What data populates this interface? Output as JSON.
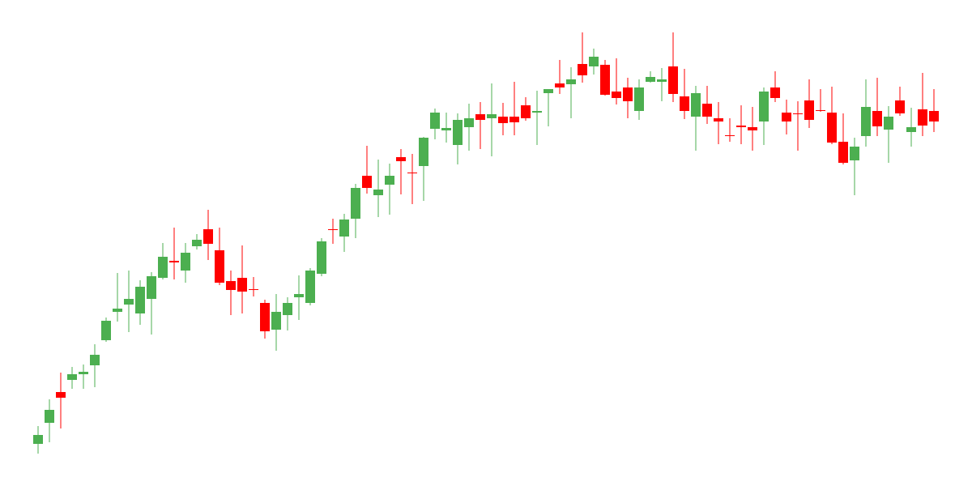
{
  "chart_data": {
    "type": "candlestick",
    "ylim": [
      0,
      600
    ],
    "up_color": "#4caf50",
    "down_color": "#ff0000",
    "open": [
      52,
      78,
      116,
      131,
      138,
      149,
      180,
      215,
      224,
      213,
      231,
      257,
      278,
      266,
      296,
      317,
      291,
      253,
      257,
      243,
      226,
      193,
      211,
      233,
      226,
      262,
      317,
      308,
      330,
      383,
      359,
      372,
      406,
      387,
      395,
      441,
      439,
      421,
      443,
      459,
      454,
      456,
      456,
      470,
      461,
      485,
      497,
      496,
      521,
      518,
      520,
      487,
      492,
      463,
      499,
      499,
      518,
      481,
      456,
      472,
      454,
      433,
      445,
      443,
      450,
      492,
      461,
      460,
      476,
      464,
      461,
      425,
      402,
      432,
      463,
      440,
      476,
      437,
      465,
      463
    ],
    "high": [
      74,
      107,
      140,
      147,
      150,
      175,
      208,
      263,
      266,
      254,
      264,
      300,
      319,
      300,
      311,
      341,
      319,
      266,
      297,
      258,
      230,
      237,
      233,
      260,
      269,
      306,
      330,
      336,
      373,
      420,
      403,
      398,
      416,
      410,
      431,
      466,
      461,
      460,
      472,
      474,
      497,
      473,
      499,
      480,
      488,
      490,
      526,
      517,
      560,
      540,
      526,
      528,
      504,
      502,
      512,
      516,
      560,
      515,
      494,
      494,
      474,
      454,
      470,
      468,
      492,
      512,
      477,
      475,
      502,
      490,
      493,
      460,
      430,
      502,
      504,
      469,
      493,
      467,
      510,
      490
    ],
    "low": [
      40,
      54,
      71,
      120,
      120,
      122,
      178,
      203,
      190,
      199,
      187,
      255,
      255,
      251,
      292,
      279,
      248,
      211,
      213,
      234,
      182,
      167,
      192,
      205,
      223,
      259,
      299,
      289,
      306,
      361,
      332,
      335,
      360,
      348,
      352,
      428,
      424,
      397,
      414,
      416,
      407,
      433,
      433,
      451,
      421,
      444,
      484,
      454,
      498,
      508,
      482,
      471,
      454,
      452,
      498,
      475,
      474,
      453,
      414,
      447,
      422,
      425,
      422,
      414,
      421,
      474,
      434,
      414,
      442,
      462,
      422,
      397,
      359,
      419,
      432,
      399,
      457,
      419,
      432,
      437
    ],
    "close": [
      63,
      94,
      109,
      138,
      141,
      162,
      204,
      219,
      231,
      246,
      259,
      283,
      276,
      288,
      304,
      299,
      251,
      242,
      240,
      242,
      191,
      215,
      226,
      237,
      266,
      302,
      316,
      329,
      368,
      368,
      366,
      383,
      401,
      386,
      430,
      461,
      442,
      452,
      454,
      452,
      459,
      448,
      449,
      454,
      463,
      490,
      492,
      502,
      507,
      530,
      483,
      479,
      475,
      492,
      505,
      502,
      484,
      463,
      485,
      456,
      450,
      432,
      443,
      439,
      487,
      479,
      450,
      459,
      452,
      463,
      424,
      399,
      419,
      468,
      444,
      456,
      460,
      443,
      445,
      450
    ]
  }
}
